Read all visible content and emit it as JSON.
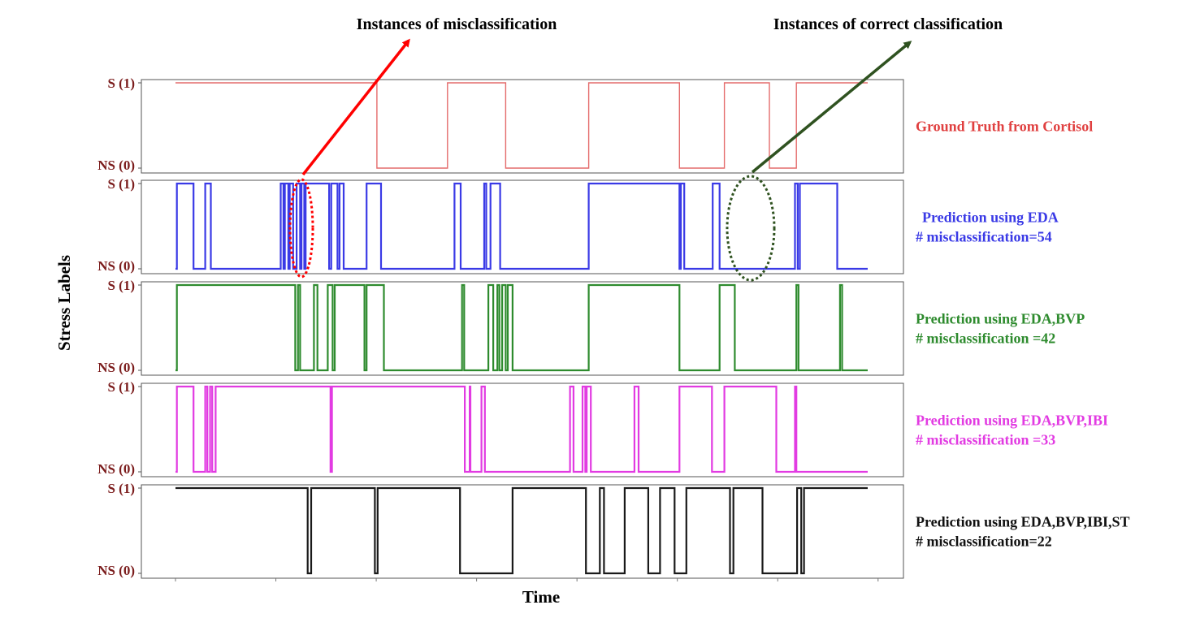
{
  "chart_data": {
    "type": "line",
    "ylabel": "Stress Labels",
    "xlabel": "Time",
    "ytick_labels": {
      "high": "S (1)",
      "low": "NS (0)"
    },
    "x_range": [
      0,
      1000
    ],
    "y_range": [
      0,
      1
    ],
    "annotations": [
      {
        "text": "Instances of misclassification",
        "color": "#ff0000",
        "marker_color": "#ff0000"
      },
      {
        "text": "Instances of correct classification",
        "color": "#000000",
        "marker_color": "#2f5220"
      }
    ],
    "panels": [
      {
        "legend": [
          "Ground Truth from Cortisol"
        ],
        "color": "#e46b6b",
        "steps": [
          [
            0,
            1
          ],
          [
            291,
            0
          ],
          [
            393,
            1
          ],
          [
            477,
            0
          ],
          [
            597,
            1
          ],
          [
            728,
            0
          ],
          [
            793,
            1
          ],
          [
            858,
            0
          ],
          [
            897,
            1
          ],
          [
            1000,
            1
          ]
        ]
      },
      {
        "legend": [
          "Prediction using EDA",
          "# misclassification=54"
        ],
        "color": "#3a3ae6",
        "steps": [
          [
            0,
            0
          ],
          [
            2,
            1
          ],
          [
            26,
            0
          ],
          [
            43,
            1
          ],
          [
            51,
            0
          ],
          [
            152,
            1
          ],
          [
            156,
            0
          ],
          [
            158,
            1
          ],
          [
            163,
            0
          ],
          [
            165,
            1
          ],
          [
            170,
            0
          ],
          [
            175,
            1
          ],
          [
            180,
            0
          ],
          [
            182,
            1
          ],
          [
            186,
            0
          ],
          [
            188,
            1
          ],
          [
            222,
            0
          ],
          [
            225,
            1
          ],
          [
            234,
            0
          ],
          [
            237,
            1
          ],
          [
            243,
            0
          ],
          [
            276,
            1
          ],
          [
            297,
            0
          ],
          [
            403,
            1
          ],
          [
            412,
            0
          ],
          [
            446,
            1
          ],
          [
            449,
            0
          ],
          [
            455,
            1
          ],
          [
            469,
            0
          ],
          [
            597,
            1
          ],
          [
            728,
            0
          ],
          [
            730,
            1
          ],
          [
            735,
            0
          ],
          [
            776,
            1
          ],
          [
            786,
            0
          ],
          [
            895,
            1
          ],
          [
            899,
            0
          ],
          [
            902,
            1
          ],
          [
            956,
            0
          ],
          [
            1000,
            0
          ]
        ]
      },
      {
        "legend": [
          "Prediction using EDA,BVP",
          "# misclassification =42"
        ],
        "color": "#2e8b2e",
        "steps": [
          [
            0,
            0
          ],
          [
            2,
            1
          ],
          [
            173,
            0
          ],
          [
            177,
            1
          ],
          [
            180,
            0
          ],
          [
            200,
            1
          ],
          [
            205,
            0
          ],
          [
            220,
            1
          ],
          [
            227,
            0
          ],
          [
            230,
            1
          ],
          [
            273,
            0
          ],
          [
            276,
            1
          ],
          [
            301,
            0
          ],
          [
            414,
            1
          ],
          [
            417,
            0
          ],
          [
            452,
            1
          ],
          [
            459,
            0
          ],
          [
            465,
            1
          ],
          [
            468,
            0
          ],
          [
            472,
            1
          ],
          [
            477,
            0
          ],
          [
            480,
            1
          ],
          [
            487,
            0
          ],
          [
            597,
            1
          ],
          [
            728,
            0
          ],
          [
            786,
            1
          ],
          [
            808,
            0
          ],
          [
            897,
            1
          ],
          [
            900,
            0
          ],
          [
            960,
            1
          ],
          [
            963,
            0
          ],
          [
            1000,
            0
          ]
        ]
      },
      {
        "legend": [
          "Prediction using EDA,BVP,IBI",
          "# misclassification =33"
        ],
        "color": "#e23be2",
        "steps": [
          [
            0,
            0
          ],
          [
            2,
            1
          ],
          [
            26,
            0
          ],
          [
            43,
            1
          ],
          [
            46,
            0
          ],
          [
            50,
            1
          ],
          [
            53,
            0
          ],
          [
            58,
            1
          ],
          [
            224,
            0
          ],
          [
            226,
            1
          ],
          [
            418,
            0
          ],
          [
            425,
            1
          ],
          [
            426,
            0
          ],
          [
            442,
            1
          ],
          [
            447,
            0
          ],
          [
            570,
            1
          ],
          [
            575,
            0
          ],
          [
            588,
            1
          ],
          [
            592,
            0
          ],
          [
            594,
            1
          ],
          [
            600,
            0
          ],
          [
            663,
            1
          ],
          [
            669,
            0
          ],
          [
            728,
            1
          ],
          [
            775,
            0
          ],
          [
            793,
            1
          ],
          [
            868,
            0
          ],
          [
            895,
            1
          ],
          [
            897,
            0
          ],
          [
            1000,
            0
          ]
        ]
      },
      {
        "legend": [
          "Prediction using EDA,BVP,IBI,ST",
          "# misclassification=22"
        ],
        "color": "#1a1a1a",
        "steps": [
          [
            0,
            1
          ],
          [
            191,
            0
          ],
          [
            196,
            1
          ],
          [
            288,
            0
          ],
          [
            292,
            1
          ],
          [
            411,
            0
          ],
          [
            487,
            1
          ],
          [
            593,
            0
          ],
          [
            613,
            1
          ],
          [
            619,
            0
          ],
          [
            649,
            1
          ],
          [
            683,
            0
          ],
          [
            700,
            1
          ],
          [
            721,
            0
          ],
          [
            738,
            1
          ],
          [
            801,
            0
          ],
          [
            806,
            1
          ],
          [
            848,
            0
          ],
          [
            898,
            1
          ],
          [
            904,
            0
          ],
          [
            908,
            1
          ],
          [
            1000,
            1
          ]
        ]
      }
    ]
  }
}
